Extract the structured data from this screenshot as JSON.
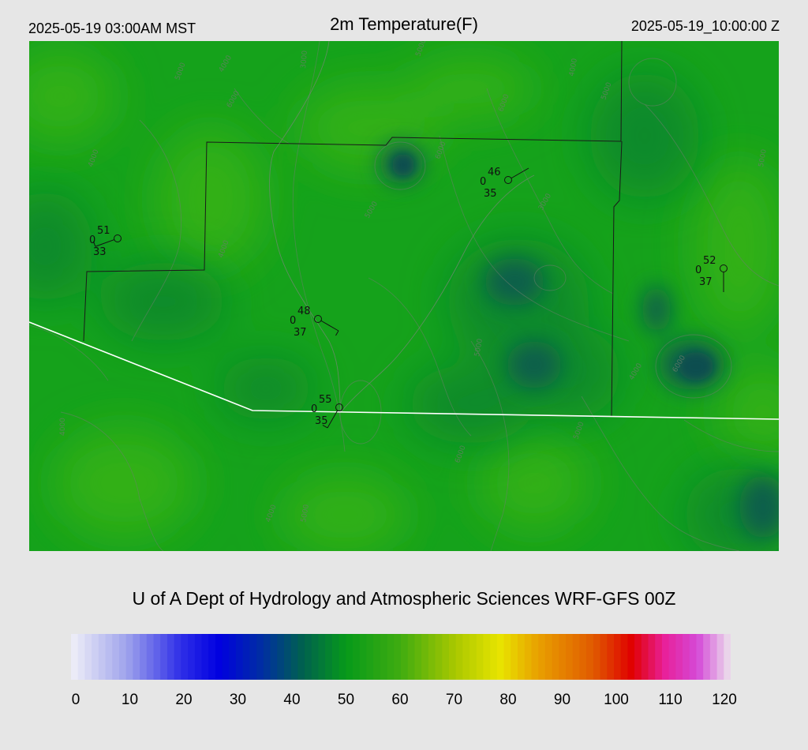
{
  "header": {
    "local_time": "2025-05-19 03:00AM MST",
    "title": "2m Temperature(F)",
    "valid_time": "2025-05-19_10:00:00 Z"
  },
  "footer": {
    "credit": "U of A Dept of Hydrology and Atmospheric Sciences WRF-GFS 00Z"
  },
  "colorbar": {
    "ticks": [
      "0",
      "10",
      "20",
      "30",
      "40",
      "50",
      "60",
      "70",
      "80",
      "90",
      "100",
      "110",
      "120"
    ],
    "min": 0,
    "max": 120,
    "stops": [
      {
        "v": 0,
        "c": "#f0f0f8"
      },
      {
        "v": 10,
        "c": "#a0a4ec"
      },
      {
        "v": 20,
        "c": "#2e2ee8"
      },
      {
        "v": 27,
        "c": "#0000e0"
      },
      {
        "v": 35,
        "c": "#0030a0"
      },
      {
        "v": 42,
        "c": "#006050"
      },
      {
        "v": 50,
        "c": "#069a1a"
      },
      {
        "v": 60,
        "c": "#40ac10"
      },
      {
        "v": 70,
        "c": "#aac800"
      },
      {
        "v": 78,
        "c": "#e8e400"
      },
      {
        "v": 85,
        "c": "#e8a000"
      },
      {
        "v": 95,
        "c": "#e05a00"
      },
      {
        "v": 102,
        "c": "#e00000"
      },
      {
        "v": 108,
        "c": "#e8209a"
      },
      {
        "v": 114,
        "c": "#d44ad8"
      },
      {
        "v": 120,
        "c": "#ece4ec"
      }
    ]
  },
  "map_colors": {
    "base": "#15a21b",
    "warm": "#30b012",
    "cool": "#0a8a2c",
    "cold": "#0b5e4c",
    "border_county": "#1a1a1a",
    "border_state": "#ffffff"
  },
  "stations": [
    {
      "id": "stn-1",
      "temp": "51",
      "dew": "33",
      "cloud": "0",
      "temp_f": 51,
      "dew_f": 33,
      "wind_dir_deg": 250,
      "wind_kt": 5
    },
    {
      "id": "stn-2",
      "temp": "46",
      "dew": "35",
      "cloud": "0",
      "temp_f": 46,
      "dew_f": 35,
      "wind_dir_deg": 60,
      "wind_kt": 3
    },
    {
      "id": "stn-3",
      "temp": "52",
      "dew": "37",
      "cloud": "0",
      "temp_f": 52,
      "dew_f": 37,
      "wind_dir_deg": 180,
      "wind_kt": 3
    },
    {
      "id": "stn-4",
      "temp": "48",
      "dew": "37",
      "cloud": "0",
      "temp_f": 48,
      "dew_f": 37,
      "wind_dir_deg": 120,
      "wind_kt": 5
    },
    {
      "id": "stn-5",
      "temp": "55",
      "dew": "35",
      "cloud": "0",
      "temp_f": 55,
      "dew_f": 35,
      "wind_dir_deg": 210,
      "wind_kt": 5
    }
  ],
  "contour_labels": [
    "5000",
    "4000",
    "6000",
    "3000",
    "5000",
    "6000",
    "4000",
    "5000",
    "4000",
    "6000",
    "5000",
    "3000",
    "4000",
    "5000",
    "4000",
    "6000",
    "5000",
    "4000",
    "5000",
    "6000",
    "4000",
    "5000"
  ]
}
